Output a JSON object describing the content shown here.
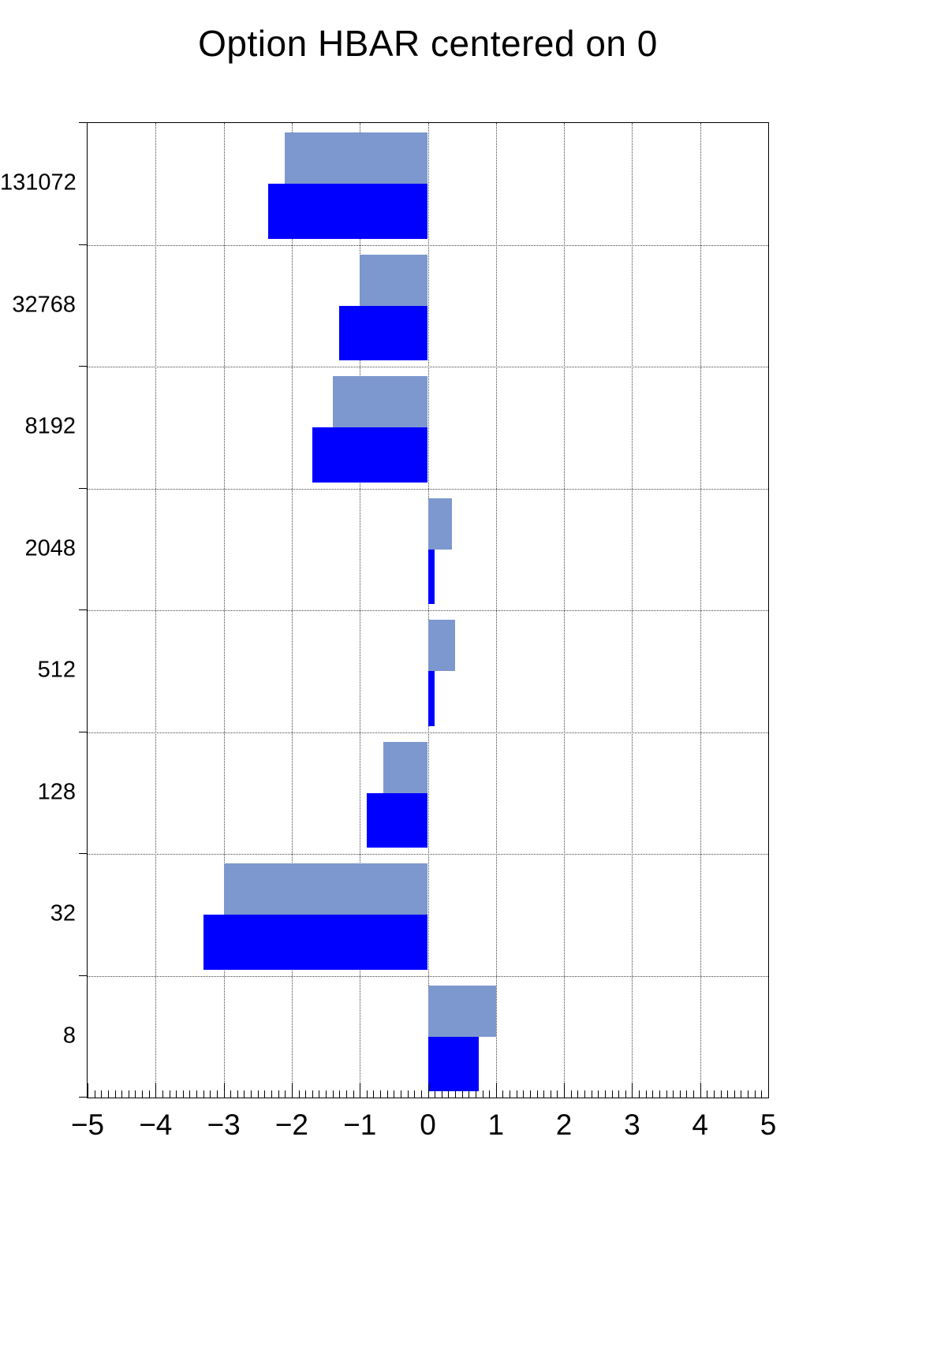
{
  "chart_data": {
    "type": "bar",
    "orientation": "horizontal",
    "title": "Option HBAR centered on 0",
    "categories": [
      "131072",
      "32768",
      "8192",
      "2048",
      "512",
      "128",
      "32",
      "8"
    ],
    "series": [
      {
        "name": "light-blue",
        "color": "#7d98ce",
        "values": [
          -2.1,
          -1.0,
          -1.4,
          0.35,
          0.4,
          -0.65,
          -3.0,
          1.0
        ]
      },
      {
        "name": "blue",
        "color": "#0000ff",
        "values": [
          -2.35,
          -1.3,
          -1.7,
          0.1,
          0.1,
          -0.9,
          -3.3,
          0.75
        ]
      }
    ],
    "xlim": [
      -5,
      5
    ],
    "x_ticks": [
      -5,
      -4,
      -3,
      -2,
      -1,
      0,
      1,
      2,
      3,
      4,
      5
    ],
    "x_minor_step": 0.1,
    "grid": true,
    "legend": "none",
    "frame_color": "#000000",
    "background_color": "#ffffff"
  }
}
